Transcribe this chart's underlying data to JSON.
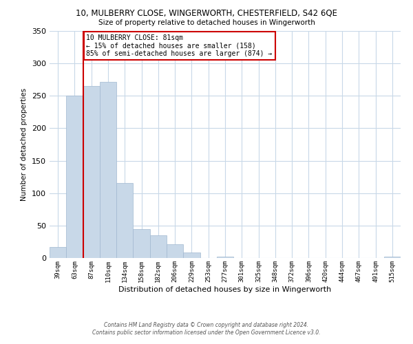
{
  "title_line1": "10, MULBERRY CLOSE, WINGERWORTH, CHESTERFIELD, S42 6QE",
  "title_line2": "Size of property relative to detached houses in Wingerworth",
  "xlabel": "Distribution of detached houses by size in Wingerworth",
  "ylabel": "Number of detached properties",
  "bar_color": "#c8d8e8",
  "bar_edge_color": "#a0b8d0",
  "bin_labels": [
    "39sqm",
    "63sqm",
    "87sqm",
    "110sqm",
    "134sqm",
    "158sqm",
    "182sqm",
    "206sqm",
    "229sqm",
    "253sqm",
    "277sqm",
    "301sqm",
    "325sqm",
    "348sqm",
    "372sqm",
    "396sqm",
    "420sqm",
    "444sqm",
    "467sqm",
    "491sqm",
    "515sqm"
  ],
  "bar_heights": [
    17,
    250,
    265,
    272,
    116,
    45,
    35,
    21,
    8,
    0,
    2,
    0,
    0,
    0,
    0,
    0,
    0,
    0,
    0,
    0,
    2
  ],
  "ylim": [
    0,
    350
  ],
  "yticks": [
    0,
    50,
    100,
    150,
    200,
    250,
    300,
    350
  ],
  "vline_color": "#cc0000",
  "annotation_title": "10 MULBERRY CLOSE: 81sqm",
  "annotation_line2": "← 15% of detached houses are smaller (158)",
  "annotation_line3": "85% of semi-detached houses are larger (874) →",
  "annotation_box_color": "#ffffff",
  "annotation_box_edge": "#cc0000",
  "footnote1": "Contains HM Land Registry data © Crown copyright and database right 2024.",
  "footnote2": "Contains public sector information licensed under the Open Government Licence v3.0.",
  "background_color": "#ffffff",
  "grid_color": "#c8d8e8"
}
